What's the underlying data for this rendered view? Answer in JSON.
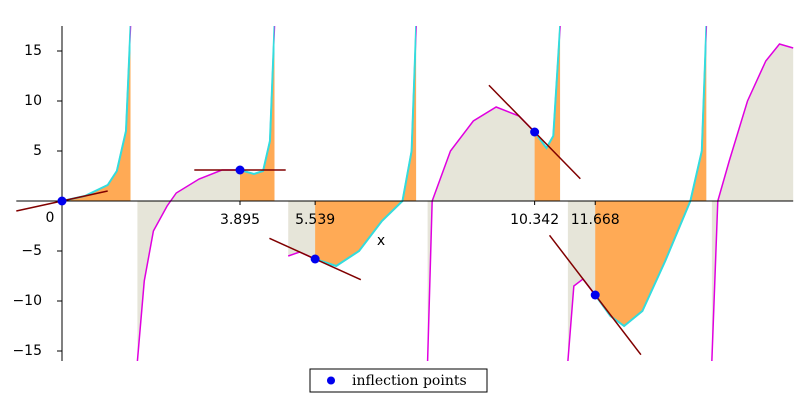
{
  "chart_data": {
    "type": "function-plot",
    "xlabel": "x",
    "xlim": [
      -1,
      16
    ],
    "ylim": [
      -16,
      17.5
    ],
    "xticks": [
      3.895,
      5.539,
      10.342,
      11.668
    ],
    "yticks": [
      {
        "value": -15,
        "label": "−15"
      },
      {
        "value": -10,
        "label": "−10"
      },
      {
        "value": -5,
        "label": "−5"
      },
      0,
      5,
      10,
      15
    ],
    "legend": "bottom",
    "series": [
      {
        "type": "line",
        "color": "#e000e0",
        "x": [
          0,
          0.5,
          1,
          1.2,
          1.4,
          1.5,
          null,
          1.65,
          1.8,
          2,
          2.3,
          2.5,
          3,
          3.5,
          3.895,
          4.2,
          4.4,
          4.55,
          4.65,
          null,
          4.95,
          5.2,
          5.539,
          6,
          6.5,
          7,
          7.45,
          7.65,
          7.75,
          null,
          8,
          8.1,
          8.5,
          9,
          9.5,
          10,
          10.342,
          10.6,
          10.75,
          10.9,
          null,
          11.07,
          11.2,
          11.4,
          11.668,
          12,
          12.3,
          12.7,
          13.2,
          13.75,
          14,
          14.1,
          null,
          14.22,
          14.35,
          14.6,
          15,
          15.4,
          15.7,
          16
        ],
        "values": [
          0,
          0.5,
          1.6,
          3,
          7,
          17.5,
          null,
          -16,
          -8,
          -3,
          -0.5,
          0.8,
          2.2,
          3.1,
          3.1,
          2.7,
          3,
          6,
          17.5,
          null,
          -5.5,
          -5.1,
          -5.8,
          -6.5,
          -5,
          -2,
          0,
          5,
          17.5,
          null,
          -16,
          0,
          5,
          8,
          9.4,
          8.5,
          6.9,
          5.3,
          6.5,
          17.5,
          null,
          -16,
          -8.5,
          -7.8,
          -9.4,
          -11.5,
          -12.5,
          -11,
          -6,
          0,
          5,
          17.5,
          null,
          -16,
          0,
          4,
          10,
          14,
          15.7,
          15.3
        ]
      },
      {
        "type": "scatter",
        "name": "inflection points",
        "color": "#0000ee",
        "x": [
          0,
          3.895,
          5.539,
          10.342,
          11.668
        ],
        "values": [
          0,
          3.1,
          -5.8,
          6.9,
          -9.4
        ]
      }
    ]
  }
}
